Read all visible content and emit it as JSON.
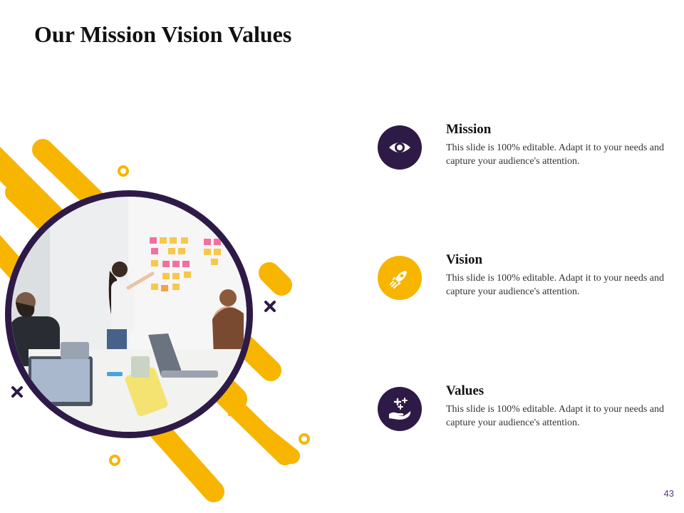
{
  "title": "Our Mission Vision Values",
  "colors": {
    "accent_yellow": "#f7b500",
    "accent_purple": "#2e1a47",
    "text_dark": "#111111"
  },
  "items": [
    {
      "heading": "Mission",
      "description": "This slide is 100% editable. Adapt it to your needs and capture your audience's attention.",
      "icon": "eye-icon",
      "color": "#2e1a47"
    },
    {
      "heading": "Vision",
      "description": "This slide is 100% editable. Adapt it to your needs and capture your audience's attention.",
      "icon": "rocket-icon",
      "color": "#f7b500"
    },
    {
      "heading": "Values",
      "description": "This slide is 100% editable. Adapt it to your needs and capture your audience's attention.",
      "icon": "hand-sparkle-icon",
      "color": "#2e1a47"
    }
  ],
  "page_number": "43"
}
